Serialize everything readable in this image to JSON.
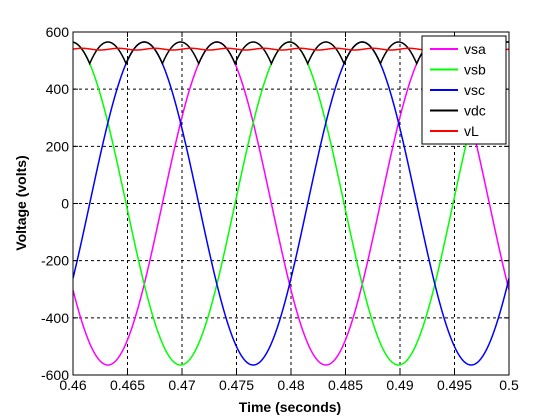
{
  "chart_data": {
    "type": "line",
    "title": "",
    "xlabel": "Time (seconds)",
    "ylabel": "Voltage (volts)",
    "xlim": [
      0.46,
      0.5
    ],
    "ylim": [
      -600,
      600
    ],
    "xticks": [
      0.46,
      0.465,
      0.47,
      0.475,
      0.48,
      0.485,
      0.49,
      0.495,
      0.5
    ],
    "xtick_labels": [
      "0.46",
      "0.465",
      "0.47",
      "0.475",
      "0.48",
      "0.485",
      "0.49",
      "0.495",
      "0.5"
    ],
    "yticks": [
      600,
      400,
      200,
      0,
      -200,
      -400,
      -600
    ],
    "ytick_labels": [
      "600",
      "400",
      "200",
      "0",
      "-200",
      "-400",
      "-600"
    ],
    "grid": true,
    "legend_position": "top-right",
    "signal": {
      "amplitude": 565,
      "frequency_hz": 50,
      "vsa_peak_time": 0.4732,
      "vL_value": 540,
      "vL_ripple": 3
    },
    "series": [
      {
        "name": "vsa",
        "color": "#ff00ff",
        "phase_deg": 0
      },
      {
        "name": "vsb",
        "color": "#00ff00",
        "phase_deg": -120
      },
      {
        "name": "vsc",
        "color": "#0000ff",
        "phase_deg": 120
      },
      {
        "name": "vdc",
        "color": "#000000",
        "kind": "rectified_max"
      },
      {
        "name": "vL",
        "color": "#ff0000",
        "kind": "dc"
      }
    ]
  }
}
